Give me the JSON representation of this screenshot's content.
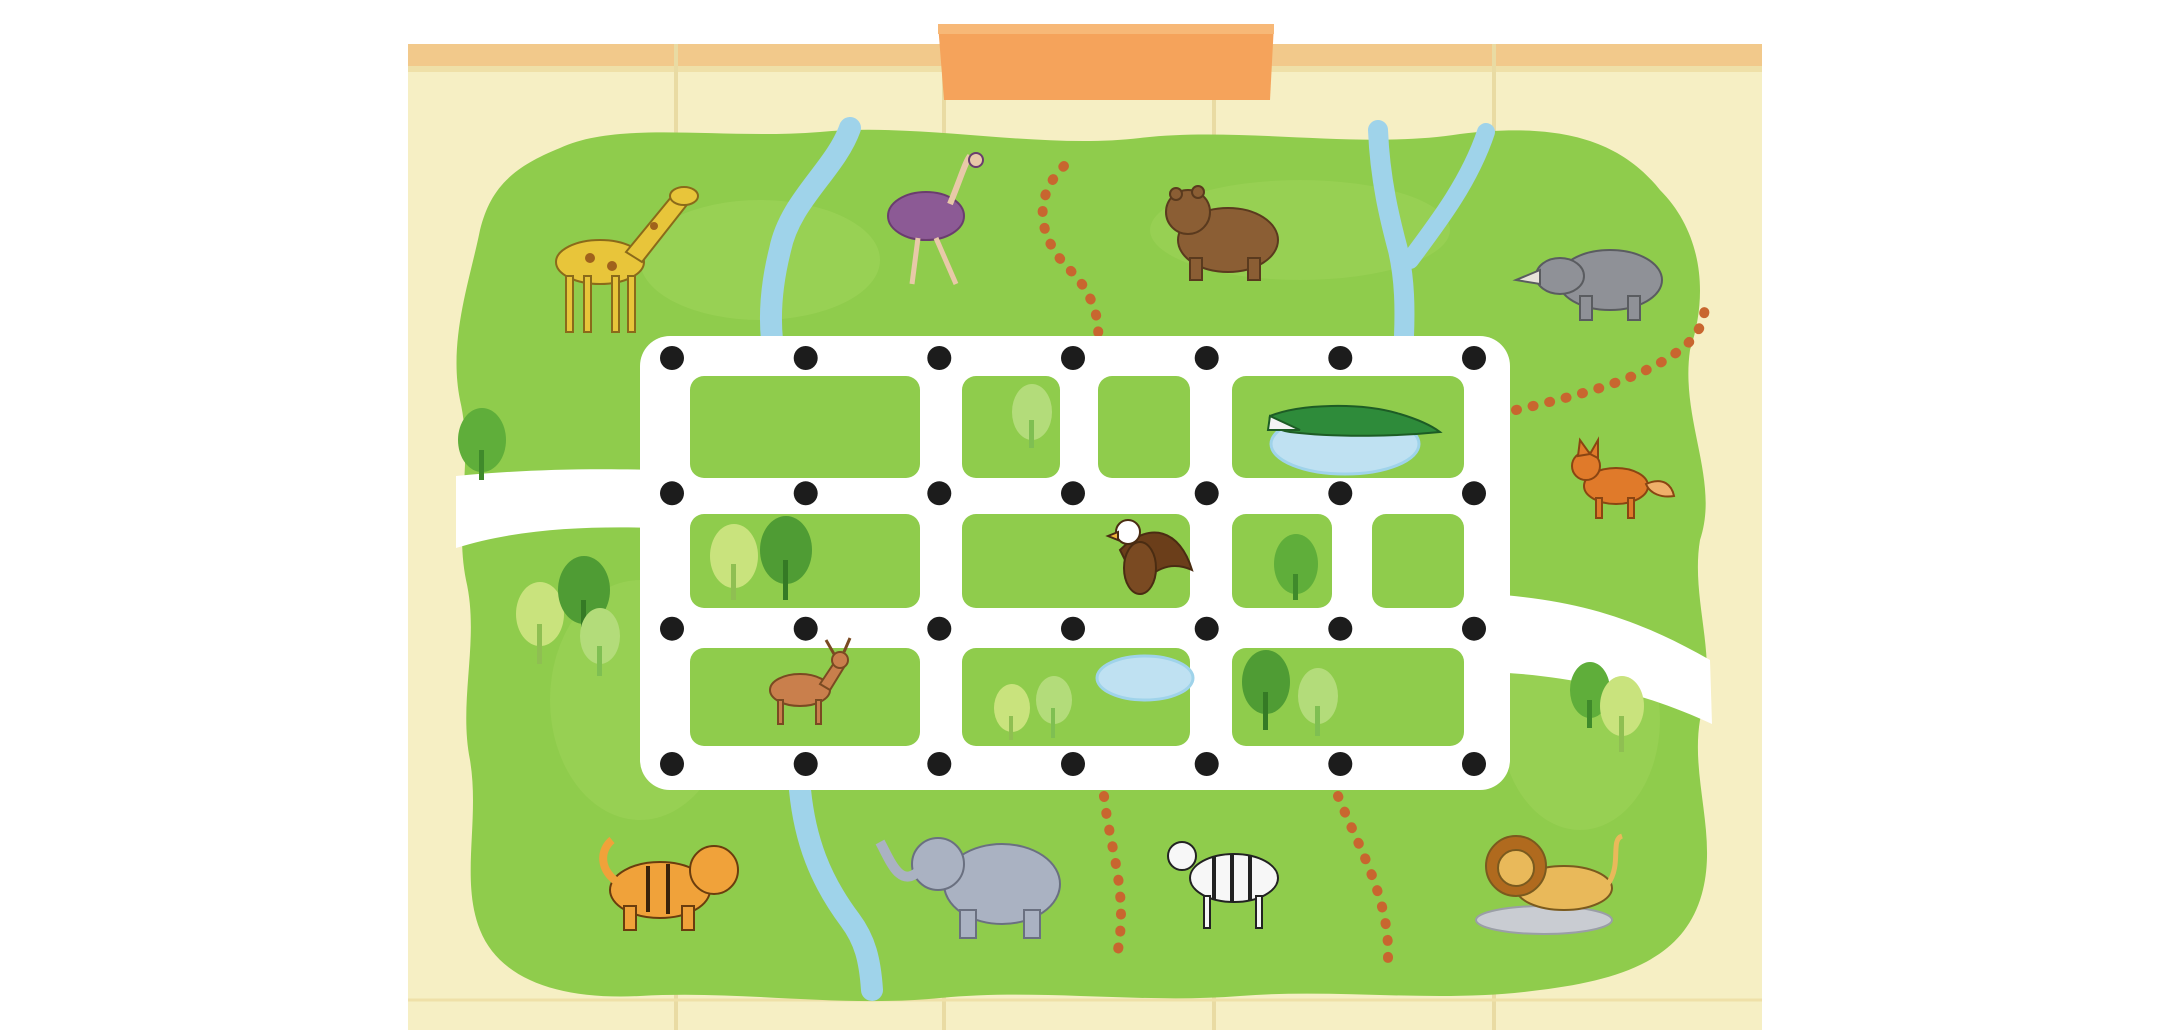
{
  "palette": {
    "paper": "#f6efc4",
    "paper_fold": "#e9dba3",
    "paper_edge": "#f2c98b",
    "banner": "#f5a35b",
    "grass": "#8fcc4c",
    "grass_light": "#a8d866",
    "road": "#ffffff",
    "node": "#1c1c1c",
    "river": "#9fd3ea",
    "trail": "#c8662f",
    "pond": "#bfe1f2"
  },
  "grid": {
    "columns": 7,
    "rows": 4
  },
  "animals": [
    {
      "name": "giraffe",
      "icon": "giraffe-icon"
    },
    {
      "name": "ostrich",
      "icon": "ostrich-icon"
    },
    {
      "name": "bear",
      "icon": "bear-icon"
    },
    {
      "name": "rhinoceros",
      "icon": "rhinoceros-icon"
    },
    {
      "name": "crocodile",
      "icon": "crocodile-icon"
    },
    {
      "name": "fox",
      "icon": "fox-icon"
    },
    {
      "name": "eagle",
      "icon": "eagle-icon"
    },
    {
      "name": "deer",
      "icon": "deer-icon"
    },
    {
      "name": "tiger",
      "icon": "tiger-icon"
    },
    {
      "name": "elephant",
      "icon": "elephant-icon"
    },
    {
      "name": "zebra",
      "icon": "zebra-icon"
    },
    {
      "name": "lion",
      "icon": "lion-icon"
    }
  ]
}
